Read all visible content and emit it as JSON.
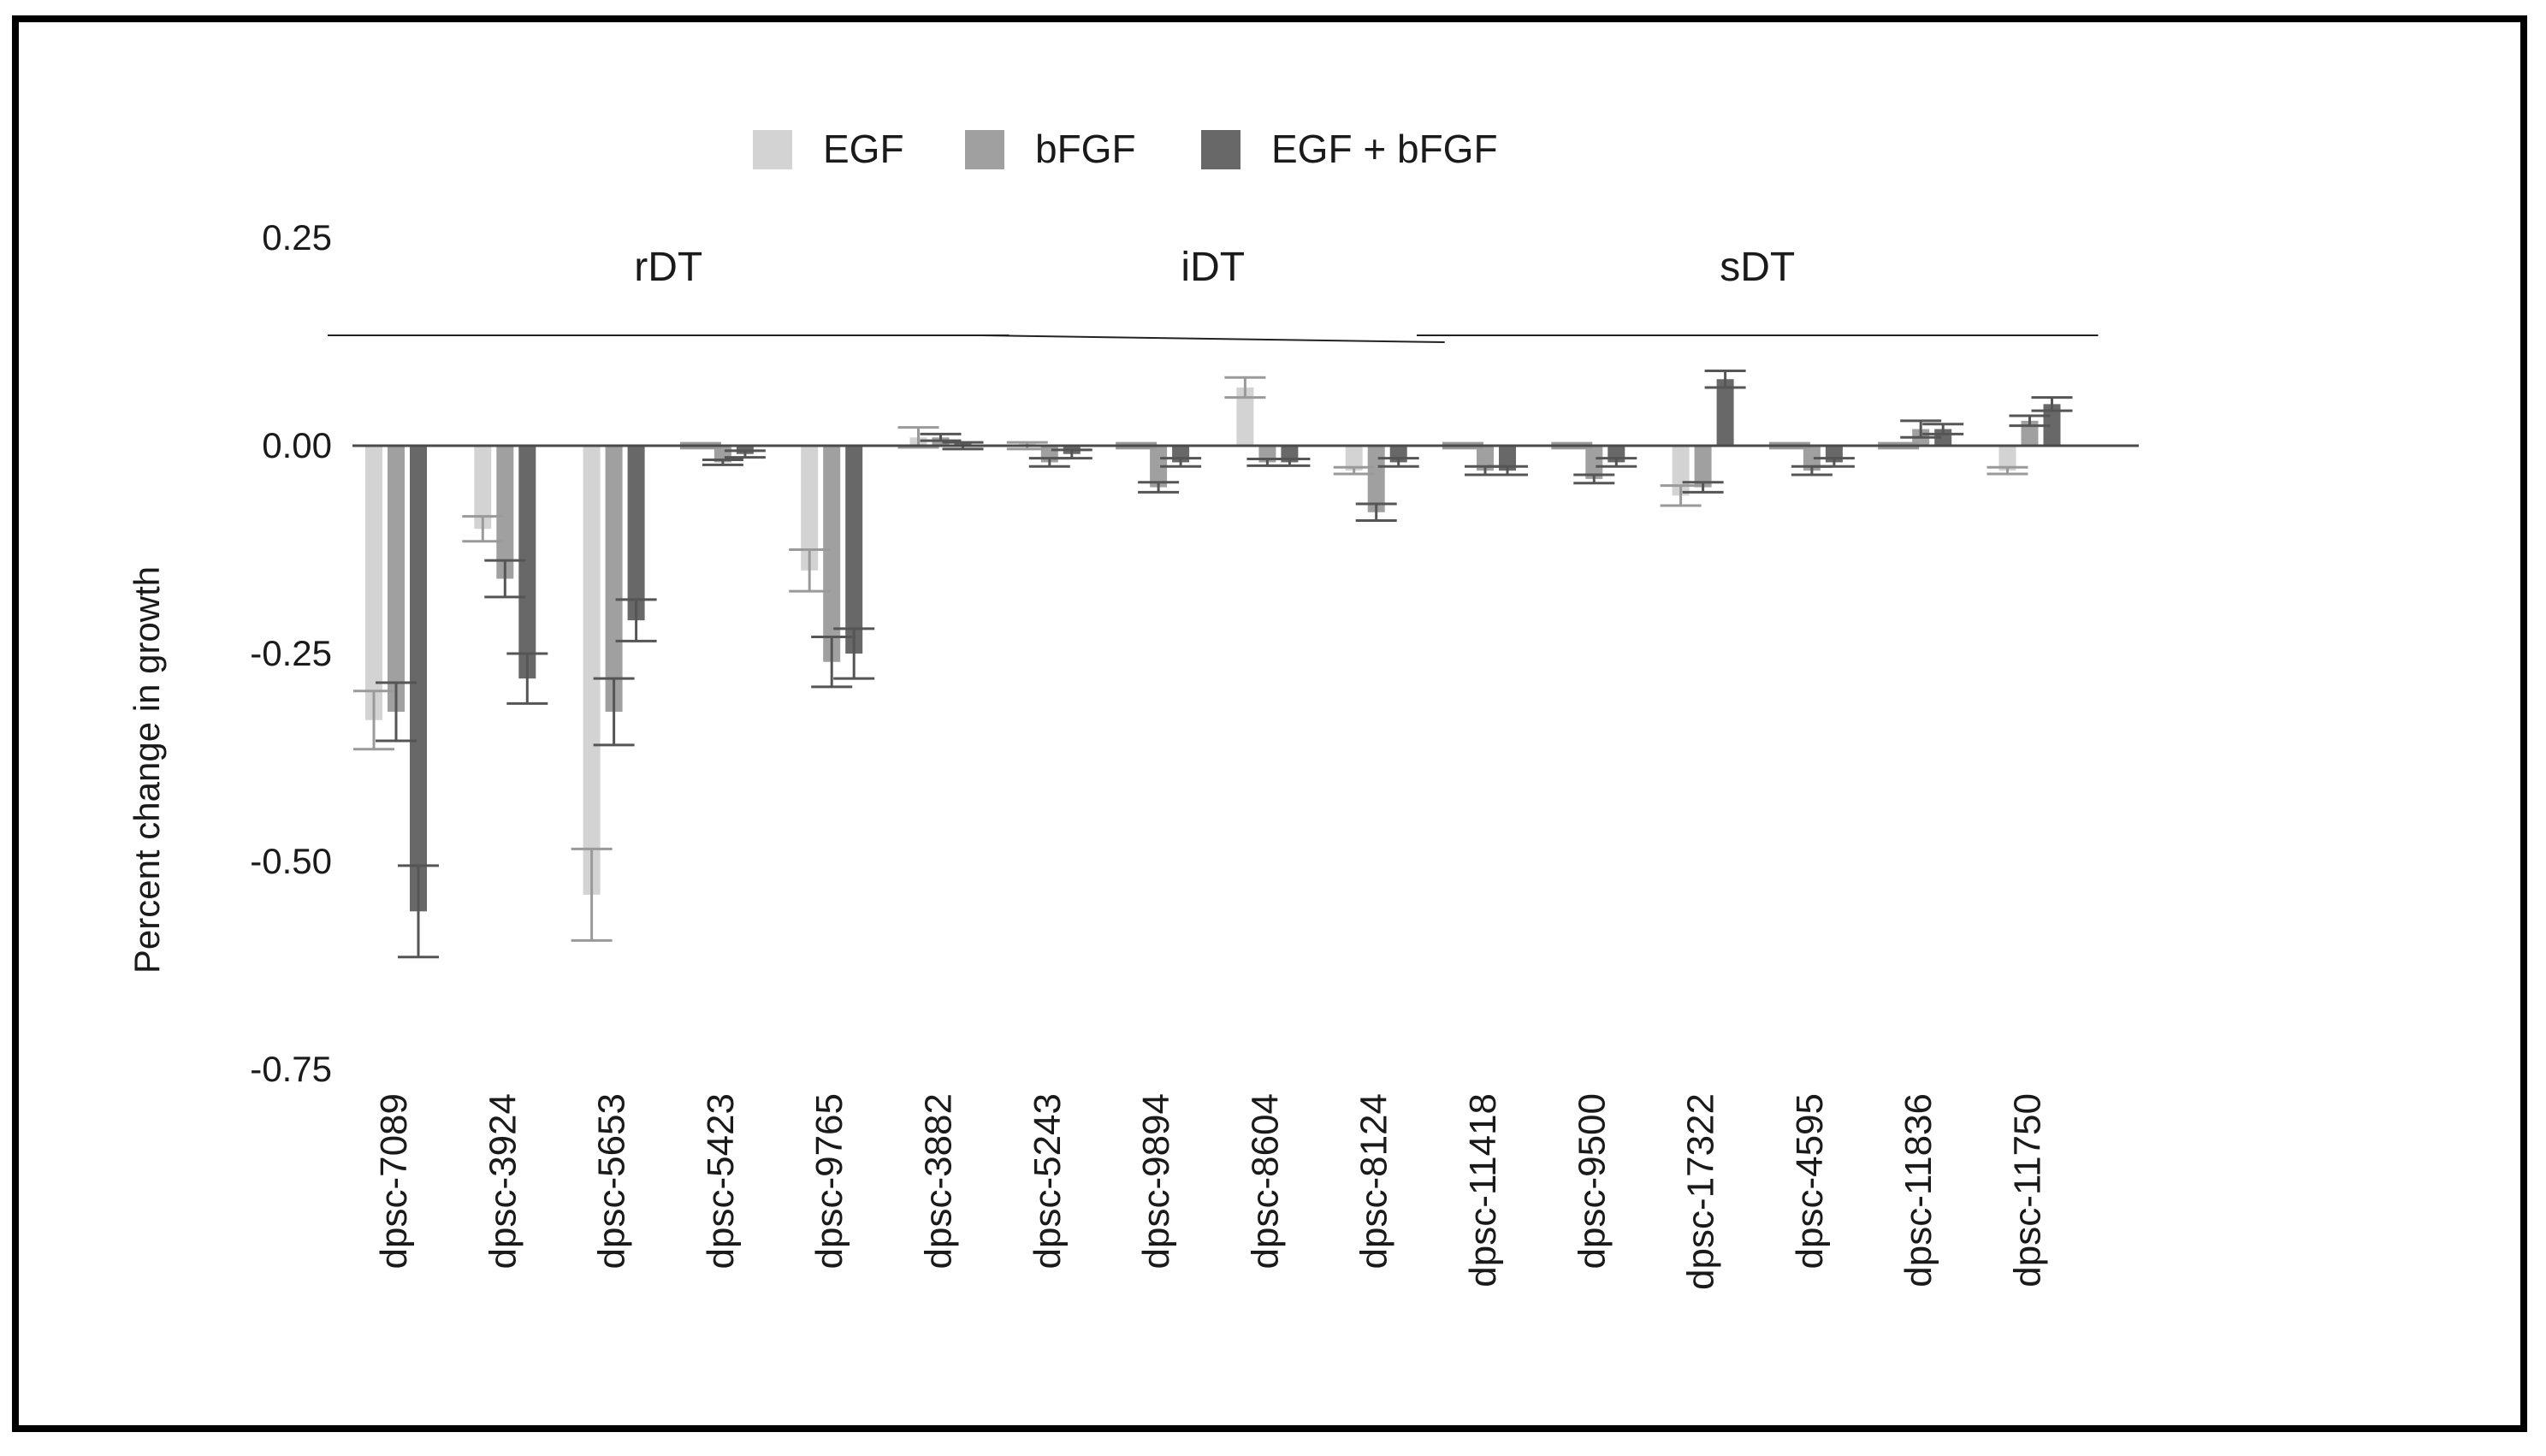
{
  "chart_data": {
    "type": "bar",
    "title": "",
    "xlabel": "",
    "ylabel": "Percent change in growth",
    "ylim": [
      -0.75,
      0.25
    ],
    "yticks": [
      "0.25",
      "0.00",
      "-0.25",
      "-0.50",
      "-0.75"
    ],
    "ytick_values": [
      0.25,
      0.0,
      -0.25,
      -0.5,
      -0.75
    ],
    "legend_position": "top-center",
    "categories": [
      "dpsc-7089",
      "dpsc-3924",
      "dpsc-5653",
      "dpsc-5423",
      "dpsc-9765",
      "dpsc-3882",
      "dpsc-5243",
      "dpsc-9894",
      "dpsc-8604",
      "dpsc-8124",
      "dpsc-11418",
      "dpsc-9500",
      "dpsc-17322",
      "dpsc-4595",
      "dpsc-11836",
      "dpsc-11750"
    ],
    "groups": [
      {
        "label": "rDT",
        "start": 0,
        "end": 5
      },
      {
        "label": "iDT",
        "start": 6,
        "end": 9
      },
      {
        "label": "sDT",
        "start": 10,
        "end": 15
      }
    ],
    "series": [
      {
        "name": "EGF",
        "color": "#d3d3d3",
        "values": [
          -0.33,
          -0.1,
          -0.54,
          0.0,
          -0.15,
          0.01,
          0.0,
          0.0,
          0.07,
          -0.03,
          0.0,
          0.0,
          -0.06,
          0.0,
          0.0,
          -0.03
        ],
        "errors": [
          0.035,
          0.015,
          0.055,
          0.003,
          0.025,
          0.012,
          0.004,
          0.003,
          0.012,
          0.004,
          0.003,
          0.003,
          0.012,
          0.003,
          0.003,
          0.004
        ]
      },
      {
        "name": "bFGF",
        "color": "#a0a0a0",
        "values": [
          -0.32,
          -0.16,
          -0.32,
          -0.02,
          -0.26,
          0.01,
          -0.02,
          -0.05,
          -0.02,
          -0.08,
          -0.03,
          -0.04,
          -0.05,
          -0.03,
          0.02,
          0.03
        ],
        "errors": [
          0.035,
          0.022,
          0.04,
          0.003,
          0.03,
          0.004,
          0.005,
          0.006,
          0.004,
          0.01,
          0.005,
          0.005,
          0.006,
          0.005,
          0.01,
          0.006
        ]
      },
      {
        "name": "EGF + bFGF",
        "color": "#686868",
        "values": [
          -0.56,
          -0.28,
          -0.21,
          -0.01,
          -0.25,
          0.0,
          -0.01,
          -0.02,
          -0.02,
          -0.02,
          -0.03,
          -0.02,
          0.08,
          -0.02,
          0.02,
          0.05
        ],
        "errors": [
          0.055,
          0.03,
          0.025,
          0.004,
          0.03,
          0.004,
          0.005,
          0.005,
          0.004,
          0.005,
          0.005,
          0.005,
          0.01,
          0.005,
          0.006,
          0.008
        ]
      }
    ]
  }
}
